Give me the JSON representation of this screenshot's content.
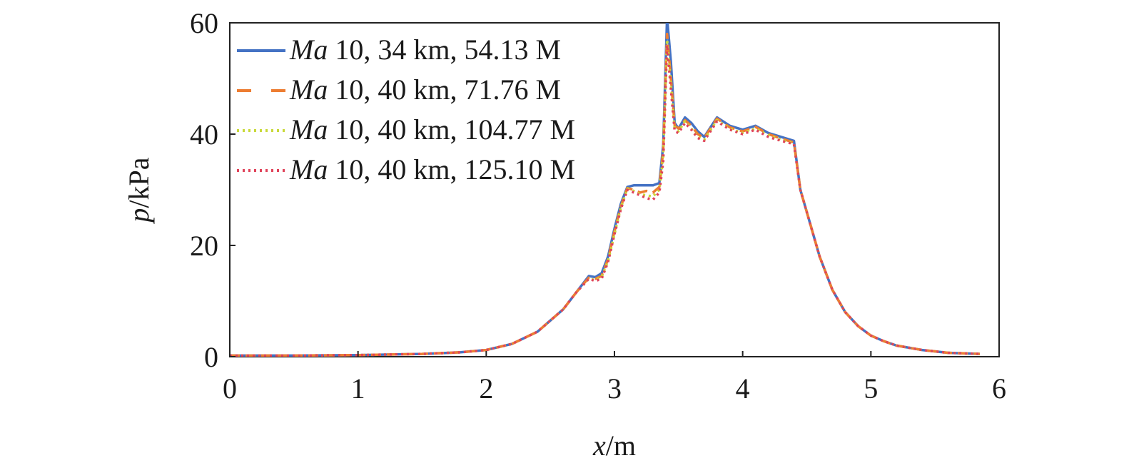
{
  "chart_data": {
    "type": "line",
    "xlabel": {
      "var": "x",
      "unit": "/m"
    },
    "ylabel": {
      "var": "p",
      "unit": "/kPa"
    },
    "xlim": [
      0,
      6
    ],
    "ylim": [
      0,
      60
    ],
    "xticks": [
      "0",
      "1",
      "2",
      "3",
      "4",
      "5",
      "6"
    ],
    "yticks": [
      "0",
      "20",
      "40",
      "60"
    ],
    "grid": false,
    "legend_position": "top-left",
    "series": [
      {
        "name_prefix": "Ma",
        "name_rest": " 10, 34 km, 54.13 M",
        "color": "#4472c4",
        "style": "solid",
        "x": [
          0,
          0.5,
          1.0,
          1.5,
          1.8,
          2.0,
          2.2,
          2.4,
          2.6,
          2.7,
          2.8,
          2.85,
          2.9,
          2.95,
          3.0,
          3.05,
          3.1,
          3.15,
          3.2,
          3.25,
          3.3,
          3.35,
          3.38,
          3.41,
          3.44,
          3.47,
          3.5,
          3.55,
          3.6,
          3.65,
          3.7,
          3.8,
          3.9,
          4.0,
          4.1,
          4.2,
          4.3,
          4.4,
          4.45,
          4.5,
          4.6,
          4.7,
          4.8,
          4.9,
          5.0,
          5.1,
          5.2,
          5.4,
          5.6,
          5.85
        ],
        "y": [
          0.2,
          0.2,
          0.3,
          0.5,
          0.8,
          1.2,
          2.3,
          4.5,
          8.5,
          11.5,
          14.5,
          14.3,
          15.0,
          18.0,
          23.0,
          27.5,
          30.5,
          30.8,
          30.8,
          30.8,
          30.8,
          31.2,
          38.0,
          61.0,
          53.0,
          42.0,
          41.0,
          43.0,
          42.0,
          40.5,
          39.5,
          43.0,
          41.5,
          40.8,
          41.5,
          40.2,
          39.5,
          38.8,
          30.0,
          26.0,
          18.0,
          12.0,
          8.0,
          5.5,
          3.8,
          2.8,
          2.0,
          1.2,
          0.7,
          0.5
        ]
      },
      {
        "name_prefix": "Ma",
        "name_rest": " 10, 40 km, 71.76 M",
        "color": "#ed7d31",
        "style": "dashed",
        "x": [
          0,
          0.5,
          1.0,
          1.5,
          1.8,
          2.0,
          2.2,
          2.4,
          2.6,
          2.7,
          2.8,
          2.85,
          2.9,
          2.95,
          3.0,
          3.05,
          3.1,
          3.15,
          3.2,
          3.25,
          3.3,
          3.35,
          3.38,
          3.41,
          3.44,
          3.47,
          3.5,
          3.55,
          3.6,
          3.65,
          3.7,
          3.8,
          3.9,
          4.0,
          4.1,
          4.2,
          4.3,
          4.4,
          4.45,
          4.5,
          4.6,
          4.7,
          4.8,
          4.9,
          5.0,
          5.1,
          5.2,
          5.4,
          5.6,
          5.85
        ],
        "y": [
          0.2,
          0.2,
          0.3,
          0.5,
          0.8,
          1.2,
          2.3,
          4.5,
          8.5,
          11.5,
          14.2,
          14.0,
          14.5,
          17.5,
          22.5,
          27.0,
          30.3,
          30.0,
          29.5,
          29.8,
          29.5,
          30.5,
          37.0,
          58.0,
          50.0,
          41.5,
          41.0,
          42.5,
          41.5,
          40.0,
          39.3,
          42.8,
          41.2,
          40.5,
          41.3,
          40.0,
          39.2,
          38.5,
          30.0,
          26.0,
          18.0,
          12.0,
          8.0,
          5.5,
          3.8,
          2.8,
          2.0,
          1.2,
          0.7,
          0.5
        ]
      },
      {
        "name_prefix": "Ma",
        "name_rest": " 10, 40 km, 104.77 M",
        "color": "#c9d93a",
        "style": "dotted",
        "x": [
          0,
          0.5,
          1.0,
          1.5,
          1.8,
          2.0,
          2.2,
          2.4,
          2.6,
          2.7,
          2.8,
          2.85,
          2.9,
          2.95,
          3.0,
          3.05,
          3.1,
          3.15,
          3.2,
          3.25,
          3.3,
          3.35,
          3.38,
          3.41,
          3.44,
          3.47,
          3.5,
          3.55,
          3.6,
          3.65,
          3.7,
          3.8,
          3.9,
          4.0,
          4.1,
          4.2,
          4.3,
          4.4,
          4.45,
          4.5,
          4.6,
          4.7,
          4.8,
          4.9,
          5.0,
          5.1,
          5.2,
          5.4,
          5.6,
          5.85
        ],
        "y": [
          0.2,
          0.2,
          0.3,
          0.5,
          0.8,
          1.2,
          2.3,
          4.5,
          8.5,
          11.5,
          14.0,
          13.8,
          14.3,
          17.2,
          22.0,
          26.8,
          30.2,
          29.8,
          29.2,
          29.0,
          28.8,
          30.0,
          36.0,
          57.0,
          49.0,
          41.0,
          40.5,
          42.3,
          41.0,
          39.5,
          39.0,
          42.5,
          41.0,
          40.2,
          41.0,
          39.8,
          39.0,
          38.3,
          30.0,
          26.0,
          18.0,
          12.0,
          8.0,
          5.5,
          3.8,
          2.8,
          2.0,
          1.2,
          0.7,
          0.5
        ]
      },
      {
        "name_prefix": "Ma",
        "name_rest": " 10, 40 km, 125.10 M",
        "color": "#e0435a",
        "style": "dotted",
        "x": [
          0,
          0.5,
          1.0,
          1.5,
          1.8,
          2.0,
          2.2,
          2.4,
          2.6,
          2.7,
          2.8,
          2.85,
          2.9,
          2.95,
          3.0,
          3.05,
          3.1,
          3.15,
          3.2,
          3.25,
          3.3,
          3.35,
          3.38,
          3.41,
          3.44,
          3.47,
          3.5,
          3.55,
          3.6,
          3.65,
          3.7,
          3.8,
          3.9,
          4.0,
          4.1,
          4.2,
          4.3,
          4.4,
          4.45,
          4.5,
          4.6,
          4.7,
          4.8,
          4.9,
          5.0,
          5.1,
          5.2,
          5.4,
          5.6,
          5.85
        ],
        "y": [
          0.2,
          0.2,
          0.3,
          0.5,
          0.8,
          1.2,
          2.3,
          4.5,
          8.5,
          11.5,
          14.0,
          13.6,
          14.0,
          17.0,
          22.0,
          26.5,
          30.0,
          29.5,
          29.0,
          28.5,
          28.2,
          29.5,
          35.0,
          56.0,
          48.0,
          40.5,
          40.2,
          42.0,
          40.8,
          39.3,
          38.8,
          42.3,
          40.8,
          40.0,
          40.8,
          39.5,
          38.8,
          38.2,
          30.0,
          26.0,
          18.0,
          12.0,
          8.0,
          5.5,
          3.8,
          2.8,
          2.0,
          1.2,
          0.7,
          0.5
        ]
      }
    ]
  }
}
